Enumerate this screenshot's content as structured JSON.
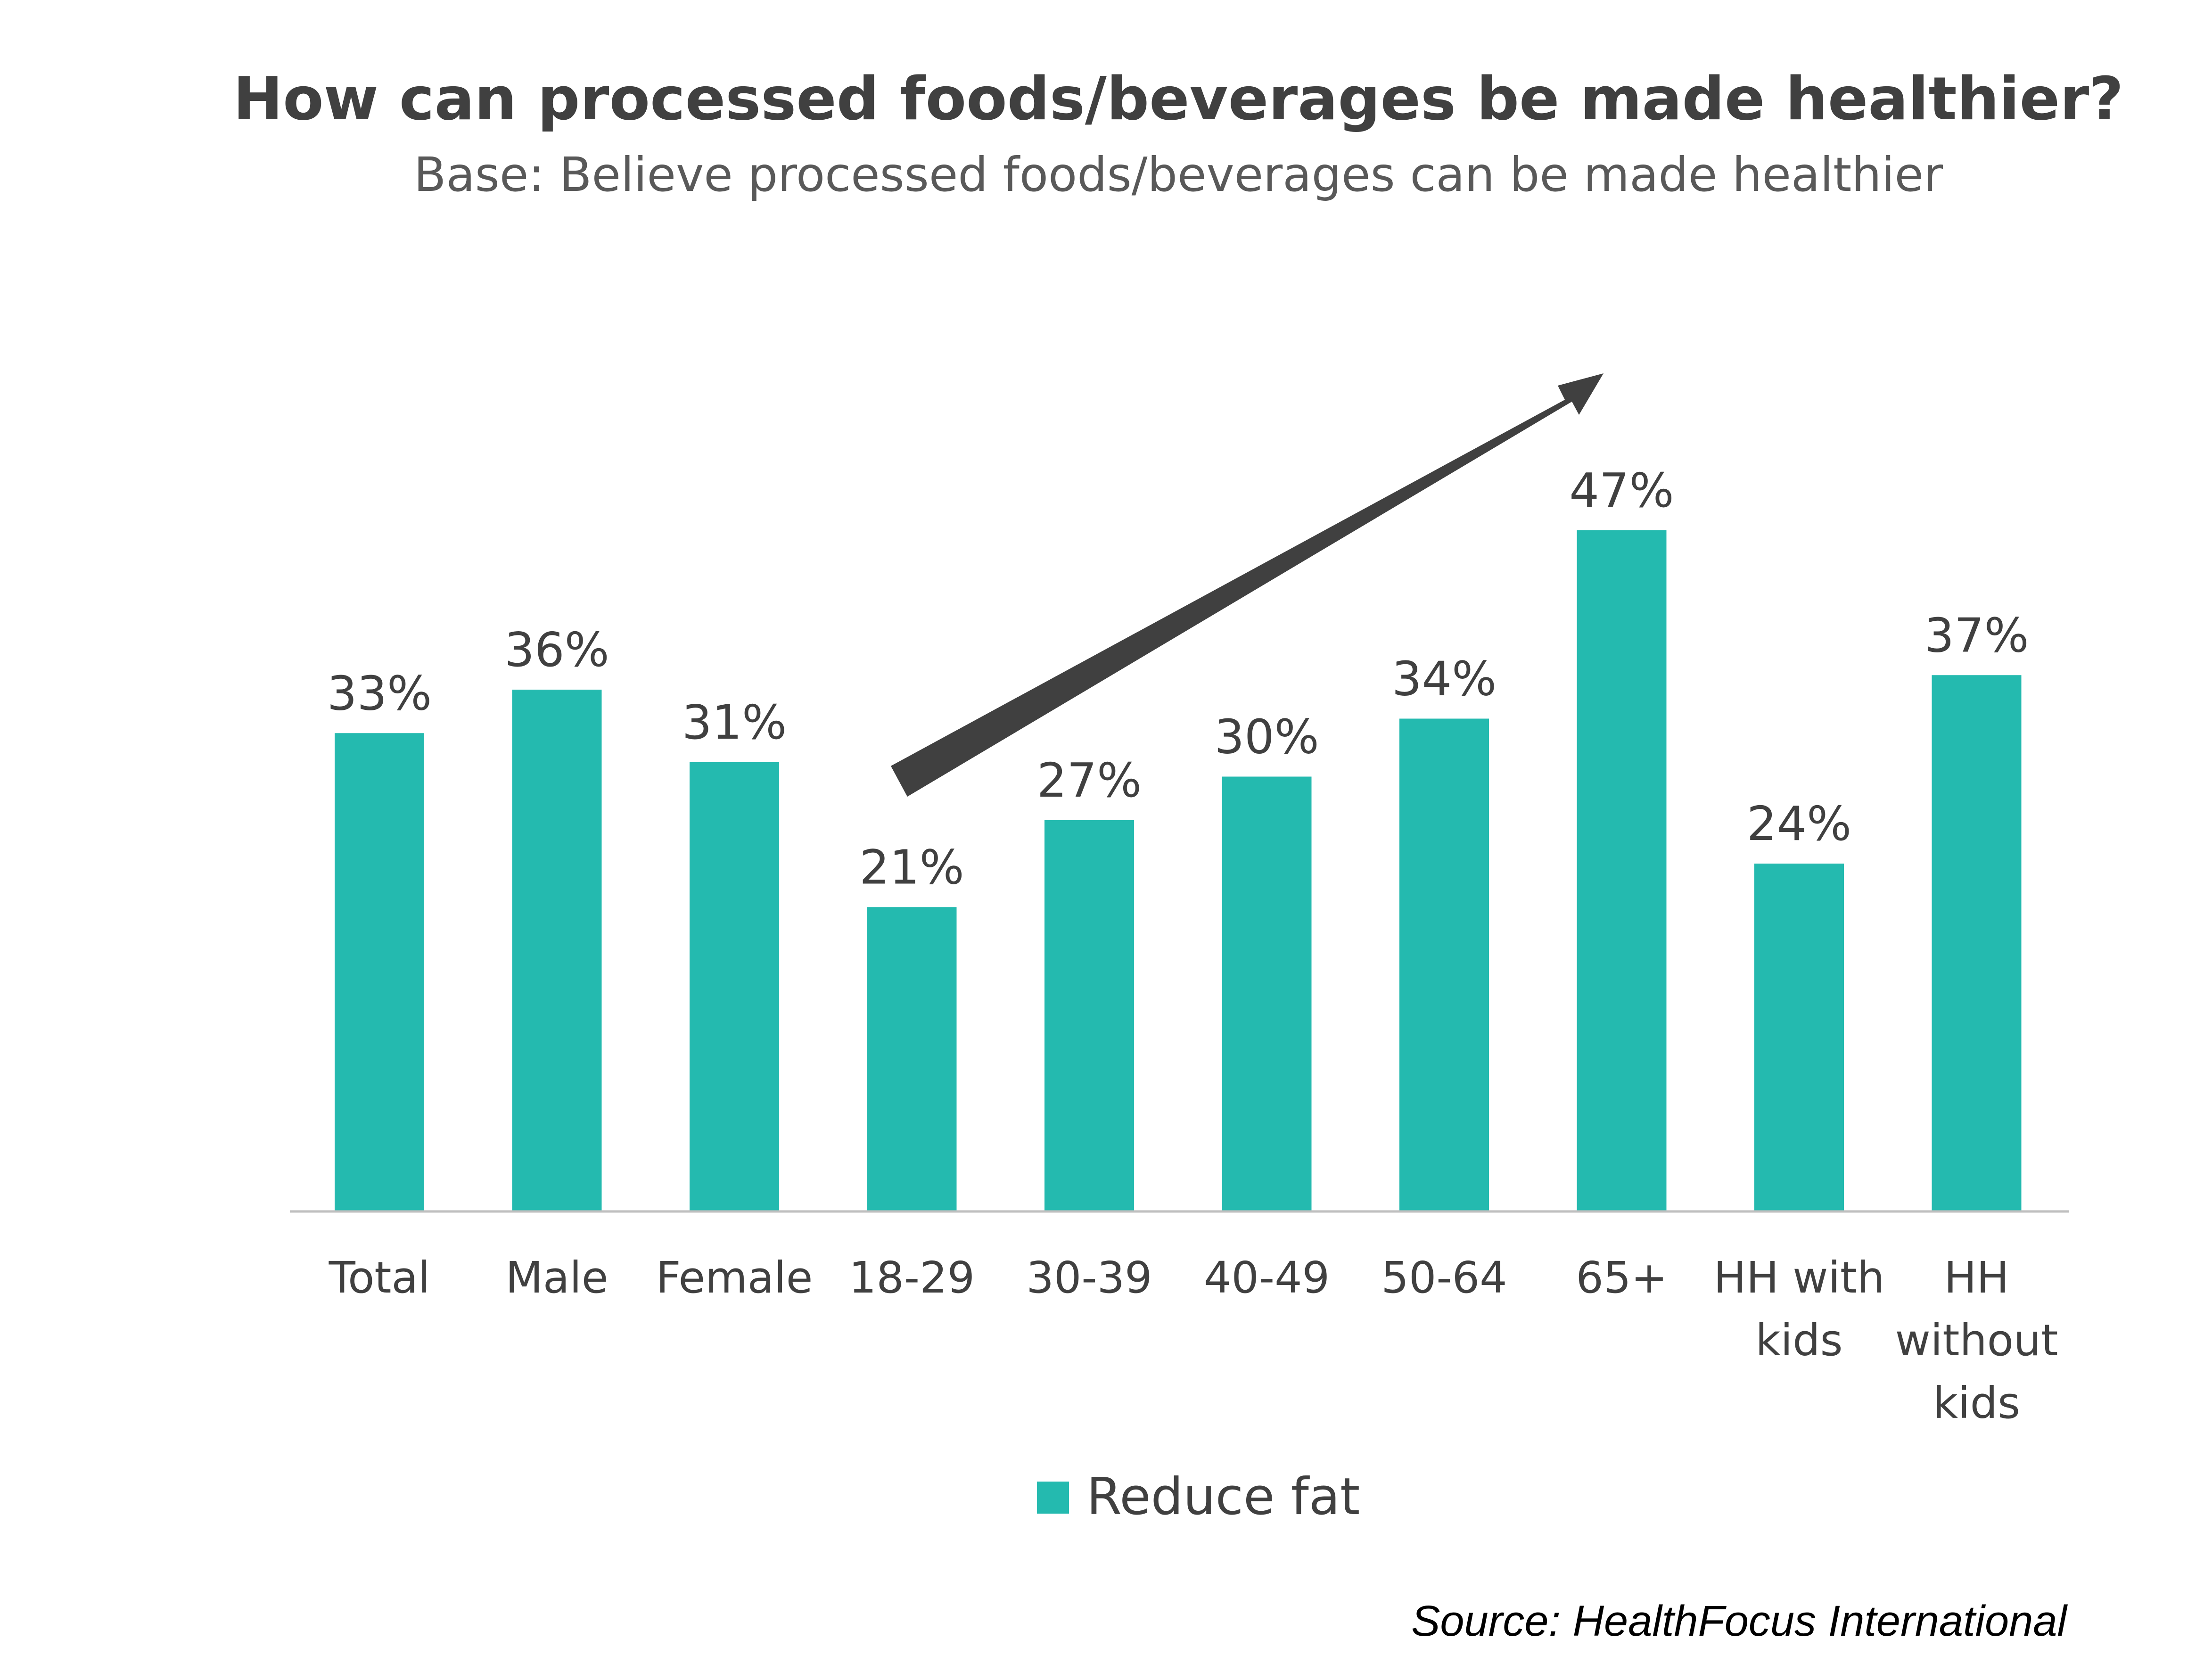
{
  "chart_data": {
    "type": "bar",
    "title": "How can processed foods/beverages be made healthier?",
    "subtitle": "Base: Believe processed foods/beverages can be made healthier",
    "categories": [
      [
        "Total"
      ],
      [
        "Male"
      ],
      [
        "Female"
      ],
      [
        "18-29"
      ],
      [
        "30-39"
      ],
      [
        "40-49"
      ],
      [
        "50-64"
      ],
      [
        "65+"
      ],
      [
        "HH with",
        "kids"
      ],
      [
        "HH",
        "without",
        "kids"
      ]
    ],
    "series": [
      {
        "name": "Reduce fat",
        "values": [
          33,
          36,
          31,
          21,
          27,
          30,
          34,
          47,
          24,
          37
        ],
        "labels": [
          "33%",
          "36%",
          "31%",
          "21%",
          "27%",
          "30%",
          "34%",
          "47%",
          "24%",
          "37%"
        ]
      }
    ],
    "ylim": [
      0,
      50
    ],
    "grid": false,
    "legend_position": "bottom",
    "annotation": "upward-trend-arrow",
    "source": "Source: HealthFocus International",
    "colors": {
      "bar": "#24BAAF",
      "arrow": "#404040",
      "axis": "#BFBFBF"
    }
  }
}
